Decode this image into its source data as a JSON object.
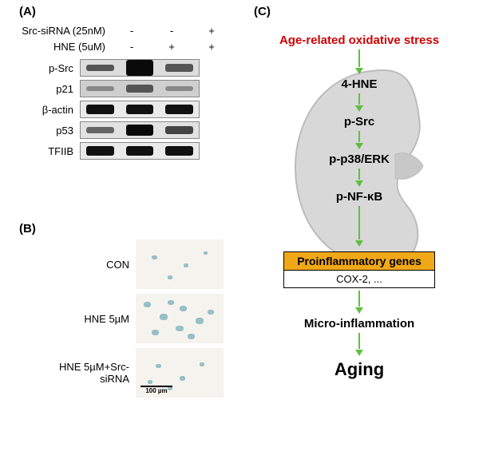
{
  "labels": {
    "A": "(A)",
    "B": "(B)",
    "C": "(C)"
  },
  "panelA": {
    "treatments": [
      {
        "label": "Src-siRNA (25nM)",
        "vals": [
          "-",
          "-",
          "+"
        ]
      },
      {
        "label": "HNE (5uM)",
        "vals": [
          "-",
          "+",
          "+"
        ]
      }
    ],
    "blots": [
      {
        "label": "p-Src",
        "bg": "#dcdcdc",
        "bands": [
          {
            "h": 8,
            "c": "#555"
          },
          {
            "h": 20,
            "c": "#0a0a0a"
          },
          {
            "h": 10,
            "c": "#555"
          }
        ]
      },
      {
        "label": "p21",
        "bg": "#cfcfcf",
        "bands": [
          {
            "h": 6,
            "c": "#888"
          },
          {
            "h": 10,
            "c": "#555"
          },
          {
            "h": 6,
            "c": "#888"
          }
        ]
      },
      {
        "label": "β-actin",
        "bg": "#eaeaea",
        "bands": [
          {
            "h": 12,
            "c": "#111"
          },
          {
            "h": 12,
            "c": "#111"
          },
          {
            "h": 12,
            "c": "#111"
          }
        ]
      },
      {
        "label": "p53",
        "bg": "#e2e2e2",
        "bands": [
          {
            "h": 8,
            "c": "#666"
          },
          {
            "h": 14,
            "c": "#0a0a0a"
          },
          {
            "h": 10,
            "c": "#444"
          }
        ]
      },
      {
        "label": "TFIIB",
        "bg": "#eaeaea",
        "bands": [
          {
            "h": 12,
            "c": "#111"
          },
          {
            "h": 12,
            "c": "#111"
          },
          {
            "h": 12,
            "c": "#111"
          }
        ]
      }
    ]
  },
  "panelB": {
    "rows": [
      {
        "label": "CON",
        "cells": [
          {
            "x": 20,
            "y": 20,
            "w": 7,
            "h": 5
          },
          {
            "x": 60,
            "y": 30,
            "w": 6,
            "h": 5
          },
          {
            "x": 85,
            "y": 15,
            "w": 5,
            "h": 4
          },
          {
            "x": 40,
            "y": 45,
            "w": 6,
            "h": 5
          }
        ],
        "scale": false
      },
      {
        "label": "HNE 5µM",
        "cells": [
          {
            "x": 10,
            "y": 10,
            "w": 9,
            "h": 7
          },
          {
            "x": 30,
            "y": 25,
            "w": 10,
            "h": 8
          },
          {
            "x": 55,
            "y": 15,
            "w": 9,
            "h": 7
          },
          {
            "x": 75,
            "y": 30,
            "w": 10,
            "h": 8
          },
          {
            "x": 20,
            "y": 45,
            "w": 9,
            "h": 7
          },
          {
            "x": 50,
            "y": 40,
            "w": 10,
            "h": 7
          },
          {
            "x": 90,
            "y": 20,
            "w": 8,
            "h": 6
          },
          {
            "x": 65,
            "y": 50,
            "w": 9,
            "h": 7
          },
          {
            "x": 40,
            "y": 8,
            "w": 8,
            "h": 6
          }
        ],
        "scale": false
      },
      {
        "label": "HNE 5µM+Src-siRNA",
        "cells": [
          {
            "x": 25,
            "y": 20,
            "w": 7,
            "h": 5
          },
          {
            "x": 55,
            "y": 35,
            "w": 7,
            "h": 6
          },
          {
            "x": 80,
            "y": 18,
            "w": 6,
            "h": 5
          },
          {
            "x": 40,
            "y": 48,
            "w": 6,
            "h": 5
          },
          {
            "x": 15,
            "y": 40,
            "w": 6,
            "h": 5
          }
        ],
        "scale": true,
        "scaleText": "100 µm"
      }
    ]
  },
  "panelC": {
    "title": "Age-related oxidative stress",
    "arrowColor": "#5fbf3f",
    "kidneyFill": "#d8d8d8",
    "kidneyStroke": "#bcbcbc",
    "steps": [
      "4-HNE",
      "p-Src",
      "p-p38/ERK",
      "p-NF-κB"
    ],
    "geneBox": {
      "header": "Proinflammatory genes",
      "body": "COX-2, ..."
    },
    "micro": "Micro-inflammation",
    "aging": "Aging"
  }
}
